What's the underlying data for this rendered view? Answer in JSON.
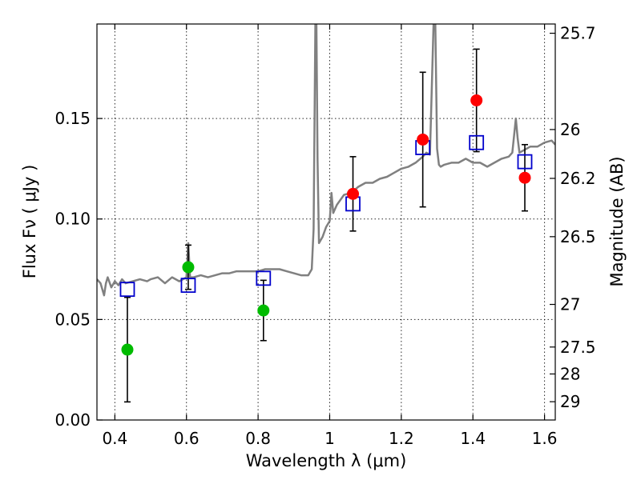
{
  "chart_data": {
    "type": "scatter",
    "xlabel": "Wavelength  λ (μm)",
    "ylabel": "Flux  Fν  ( μJy )",
    "ylabel_right": "Magnitude (AB)",
    "xlim": [
      0.35,
      1.63
    ],
    "ylim": [
      0.0,
      0.197
    ],
    "grid": true,
    "x_ticks": [
      0.4,
      0.6,
      0.8,
      1.0,
      1.2,
      1.4,
      1.6
    ],
    "x_tick_labels": [
      "0.4",
      "0.6",
      "0.8",
      "1",
      "1.2",
      "1.4",
      "1.6"
    ],
    "y_ticks": [
      0.0,
      0.05,
      0.1,
      0.15
    ],
    "y_tick_labels": [
      "0.00",
      "0.05",
      "0.10",
      "0.15"
    ],
    "right_ticks": [
      {
        "label": "25.7",
        "flux": 0.1924
      },
      {
        "label": "26",
        "flux": 0.1445
      },
      {
        "label": "26.2",
        "flux": 0.1202
      },
      {
        "label": "26.5",
        "flux": 0.0912
      },
      {
        "label": "27",
        "flux": 0.0575
      },
      {
        "label": "27.5",
        "flux": 0.0363
      },
      {
        "label": "28",
        "flux": 0.0229
      },
      {
        "label": "29",
        "flux": 0.0091
      }
    ],
    "template_spectrum": {
      "color": "#808080",
      "x": [
        0.35,
        0.36,
        0.37,
        0.375,
        0.38,
        0.39,
        0.4,
        0.41,
        0.42,
        0.43,
        0.45,
        0.47,
        0.49,
        0.5,
        0.52,
        0.54,
        0.56,
        0.58,
        0.6,
        0.605,
        0.61,
        0.62,
        0.64,
        0.66,
        0.68,
        0.7,
        0.72,
        0.74,
        0.76,
        0.78,
        0.8,
        0.82,
        0.84,
        0.86,
        0.88,
        0.9,
        0.92,
        0.94,
        0.95,
        0.955,
        0.96,
        0.963,
        0.966,
        0.97,
        0.98,
        0.99,
        1.0,
        1.005,
        1.01,
        1.02,
        1.04,
        1.06,
        1.08,
        1.1,
        1.12,
        1.14,
        1.16,
        1.18,
        1.2,
        1.22,
        1.24,
        1.26,
        1.27,
        1.28,
        1.29,
        1.295,
        1.3,
        1.305,
        1.31,
        1.32,
        1.34,
        1.36,
        1.38,
        1.4,
        1.42,
        1.44,
        1.46,
        1.48,
        1.5,
        1.51,
        1.52,
        1.525,
        1.53,
        1.54,
        1.56,
        1.58,
        1.6,
        1.62,
        1.63
      ],
      "y": [
        0.07,
        0.068,
        0.062,
        0.068,
        0.071,
        0.066,
        0.069,
        0.067,
        0.07,
        0.068,
        0.069,
        0.07,
        0.069,
        0.07,
        0.071,
        0.068,
        0.071,
        0.069,
        0.071,
        0.088,
        0.071,
        0.071,
        0.072,
        0.071,
        0.072,
        0.073,
        0.073,
        0.074,
        0.074,
        0.074,
        0.074,
        0.075,
        0.075,
        0.075,
        0.074,
        0.073,
        0.072,
        0.072,
        0.075,
        0.095,
        0.197,
        0.197,
        0.13,
        0.088,
        0.091,
        0.096,
        0.099,
        0.113,
        0.103,
        0.107,
        0.112,
        0.113,
        0.116,
        0.118,
        0.118,
        0.12,
        0.121,
        0.123,
        0.125,
        0.126,
        0.128,
        0.131,
        0.133,
        0.132,
        0.197,
        0.197,
        0.135,
        0.127,
        0.126,
        0.127,
        0.128,
        0.128,
        0.13,
        0.128,
        0.128,
        0.126,
        0.128,
        0.13,
        0.131,
        0.133,
        0.15,
        0.14,
        0.133,
        0.134,
        0.136,
        0.136,
        0.138,
        0.139,
        0.137
      ]
    },
    "series": [
      {
        "marker": "open-square",
        "color": "#0000cc",
        "x": [
          0.435,
          0.605,
          0.815,
          1.065,
          1.26,
          1.41,
          1.545
        ],
        "values": [
          0.065,
          0.067,
          0.0705,
          0.1075,
          0.1355,
          0.138,
          0.1285
        ]
      },
      {
        "marker": "filled-circle",
        "color": "#00bb00",
        "x": [
          0.435,
          0.605,
          0.815
        ],
        "values": [
          0.035,
          0.076,
          0.0545
        ],
        "err_low": [
          0.026,
          0.011,
          0.015
        ],
        "err_high": [
          0.026,
          0.011,
          0.015
        ]
      },
      {
        "marker": "filled-circle",
        "color": "#ff0000",
        "x": [
          1.065,
          1.26,
          1.41,
          1.545
        ],
        "values": [
          0.1125,
          0.1395,
          0.159,
          0.1205
        ],
        "err_low": [
          0.0185,
          0.0335,
          0.0255,
          0.0165
        ],
        "err_high": [
          0.0185,
          0.0335,
          0.0255,
          0.0165
        ]
      }
    ]
  }
}
